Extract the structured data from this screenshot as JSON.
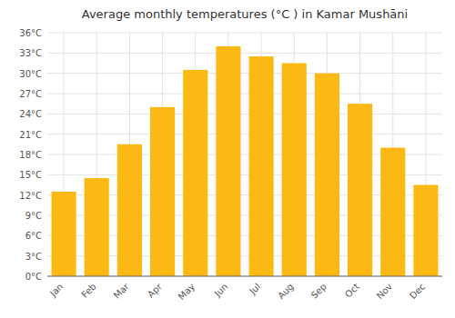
{
  "chart_data": {
    "type": "bar",
    "title": "Average monthly temperatures (°C ) in Kamar Mushāni",
    "categories": [
      "Jan",
      "Feb",
      "Mar",
      "Apr",
      "May",
      "Jun",
      "Jul",
      "Aug",
      "Sep",
      "Oct",
      "Nov",
      "Dec"
    ],
    "values": [
      12.5,
      14.5,
      19.5,
      25.0,
      30.5,
      34.0,
      32.5,
      31.5,
      30.0,
      25.5,
      19.0,
      13.5
    ],
    "color": "#FDB913",
    "ylim": [
      0,
      36
    ],
    "yticks": [
      {
        "value": 0,
        "label": "0°C"
      },
      {
        "value": 3,
        "label": "3°C"
      },
      {
        "value": 6,
        "label": "6°C"
      },
      {
        "value": 9,
        "label": "9°C"
      },
      {
        "value": 12,
        "label": "12°C"
      },
      {
        "value": 15,
        "label": "15°C"
      },
      {
        "value": 18,
        "label": "18°C"
      },
      {
        "value": 21,
        "label": "21°C"
      },
      {
        "value": 24,
        "label": "24°C"
      },
      {
        "value": 27,
        "label": "27°C"
      },
      {
        "value": 30,
        "label": "30°C"
      },
      {
        "value": 33,
        "label": "33°C"
      },
      {
        "value": 36,
        "label": "36°C"
      }
    ],
    "grid": true
  }
}
